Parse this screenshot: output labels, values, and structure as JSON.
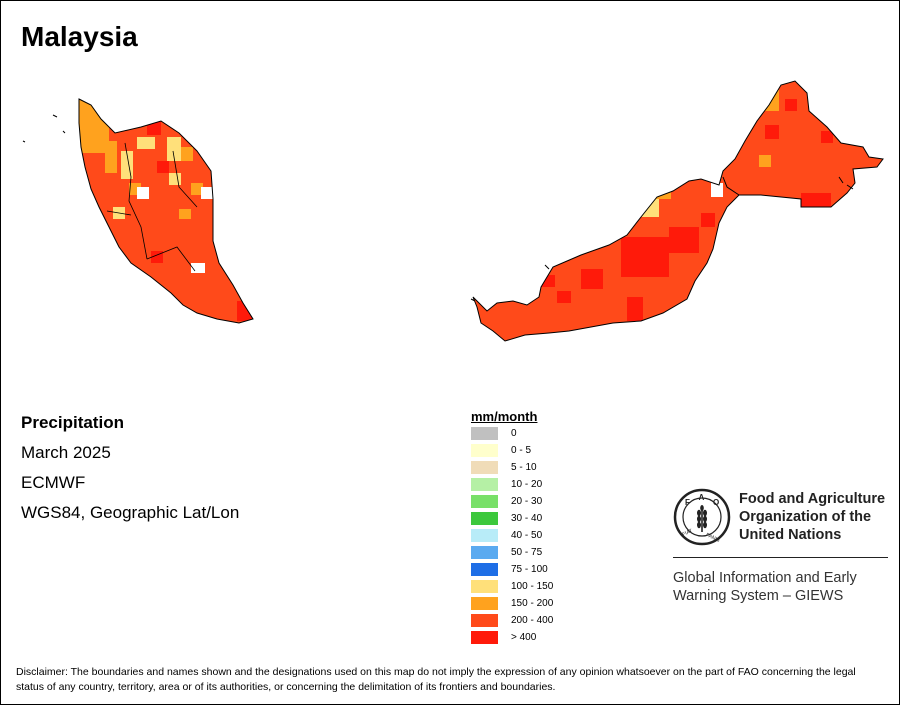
{
  "title": "Malaysia",
  "map_info": {
    "variable": "Precipitation",
    "period": "March 2025",
    "source": "ECMWF",
    "projection": "WGS84, Geographic Lat/Lon"
  },
  "legend": {
    "title": "mm/month",
    "classes": [
      {
        "label": "0",
        "color": "#c0c0c0"
      },
      {
        "label": "0 - 5",
        "color": "#ffffcc"
      },
      {
        "label": "5 - 10",
        "color": "#f0dcb8"
      },
      {
        "label": "10 - 20",
        "color": "#b5f0a5"
      },
      {
        "label": "20 - 30",
        "color": "#78e068"
      },
      {
        "label": "30 - 40",
        "color": "#3cc83c"
      },
      {
        "label": "40 - 50",
        "color": "#b8ecf8"
      },
      {
        "label": "50 - 75",
        "color": "#5aaaf0"
      },
      {
        "label": "75 - 100",
        "color": "#1e6ee6"
      },
      {
        "label": "100 - 150",
        "color": "#ffe07a"
      },
      {
        "label": "150 - 200",
        "color": "#ffa21e"
      },
      {
        "label": "200 - 400",
        "color": "#ff4a1a"
      },
      {
        "label": "> 400",
        "color": "#ff1a0a"
      }
    ]
  },
  "map_regions": [
    {
      "name": "Peninsular Malaysia",
      "dominant_class": "200 - 400"
    },
    {
      "name": "Sarawak",
      "dominant_class": "200 - 400"
    },
    {
      "name": "Sabah",
      "dominant_class": "200 - 400"
    }
  ],
  "organization": {
    "logo_acronym": "FAO",
    "logo_motto": "FIAT PANIS",
    "name_lines": [
      "Food and Agriculture",
      "Organization of the",
      "United Nations"
    ],
    "program_lines": [
      "Global Information and Early",
      "Warning System – GIEWS"
    ]
  },
  "disclaimer": "Disclaimer: The boundaries and names shown and the designations used on this map do not imply the expression of any opinion whatsoever on the part of FAO concerning the legal status of any country, territory, area or of its authorities, or concerning the delimitation of its frontiers and boundaries."
}
